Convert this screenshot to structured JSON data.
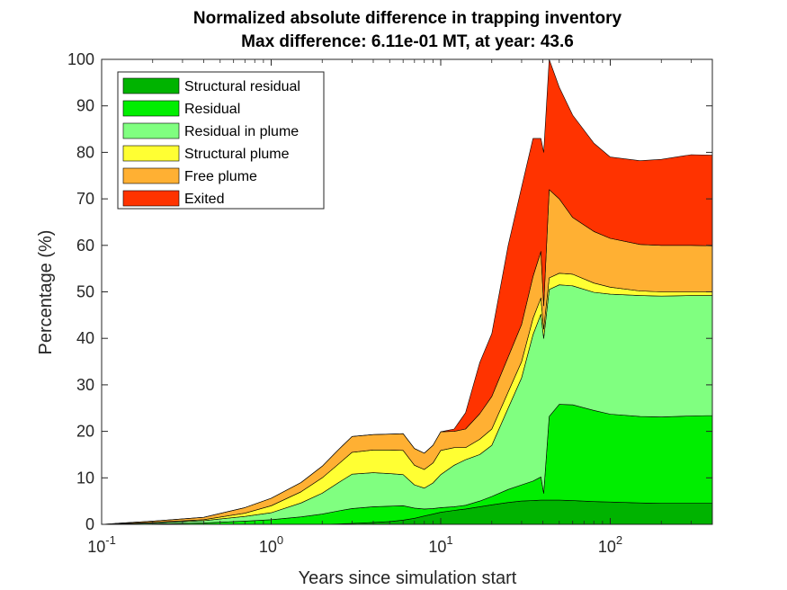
{
  "chart_data": {
    "type": "area",
    "stacked": true,
    "title": "Normalized absolute difference in trapping inventory",
    "subtitle": "Max difference: 6.11e-01 MT, at year: 43.6",
    "xlabel": "Years since simulation start",
    "ylabel": "Percentage (%)",
    "xscale": "log",
    "xlim": [
      0.1,
      400
    ],
    "ylim": [
      0,
      100
    ],
    "x_ticks": [
      {
        "value": 0.1,
        "base": "10",
        "exp": "-1"
      },
      {
        "value": 1,
        "base": "10",
        "exp": "0"
      },
      {
        "value": 10,
        "base": "10",
        "exp": "1"
      },
      {
        "value": 100,
        "base": "10",
        "exp": "2"
      }
    ],
    "y_ticks": [
      0,
      10,
      20,
      30,
      40,
      50,
      60,
      70,
      80,
      90,
      100
    ],
    "legend_position": "top-left",
    "grid": false,
    "x": [
      0.1,
      0.2,
      0.4,
      0.7,
      1.0,
      1.5,
      2.0,
      2.5,
      3.0,
      4.0,
      5.0,
      6.0,
      7.0,
      8.0,
      9.0,
      10.0,
      12.0,
      14.0,
      17.0,
      20.0,
      25.0,
      30.0,
      35.0,
      39.0,
      40.5,
      43.6,
      50.0,
      60.0,
      80.0,
      100.0,
      150.0,
      200.0,
      300.0,
      400.0
    ],
    "series": [
      {
        "name": "Structural residual",
        "color": "#00b300",
        "values": [
          0,
          0,
          0,
          0,
          0,
          0,
          0,
          0.1,
          0.2,
          0.4,
          0.6,
          0.9,
          1.3,
          1.8,
          2.2,
          2.6,
          3.0,
          3.3,
          3.8,
          4.2,
          4.7,
          5.0,
          5.1,
          5.2,
          5.2,
          5.2,
          5.2,
          5.1,
          4.9,
          4.8,
          4.6,
          4.5,
          4.5,
          4.5
        ]
      },
      {
        "name": "Residual",
        "color": "#00ee00",
        "values": [
          0,
          0.1,
          0.3,
          0.7,
          1.0,
          1.6,
          2.2,
          2.8,
          3.2,
          3.4,
          3.3,
          3.1,
          2.2,
          1.5,
          1.2,
          1.0,
          0.8,
          0.8,
          1.2,
          1.8,
          2.8,
          3.5,
          4.2,
          5.0,
          1.5,
          18.0,
          20.6,
          20.6,
          19.6,
          18.9,
          18.6,
          18.6,
          18.8,
          18.9
        ]
      },
      {
        "name": "Residual in plume",
        "color": "#80ff80",
        "values": [
          0,
          0.2,
          0.5,
          1.0,
          1.5,
          3.0,
          4.5,
          6.1,
          7.4,
          7.3,
          7.0,
          6.7,
          5.0,
          4.5,
          5.5,
          7.1,
          8.9,
          9.8,
          10.0,
          11.0,
          17.5,
          23.0,
          31.5,
          35.0,
          33.3,
          27.3,
          25.7,
          25.6,
          25.4,
          25.8,
          26.0,
          26.0,
          25.9,
          25.8
        ]
      },
      {
        "name": "Structural plume",
        "color": "#ffff33",
        "values": [
          0,
          0.1,
          0.2,
          0.7,
          1.5,
          2.4,
          3.3,
          4.0,
          4.7,
          4.9,
          5.1,
          5.2,
          4.2,
          4.0,
          4.3,
          5.2,
          3.8,
          2.6,
          3.3,
          3.5,
          3.5,
          3.5,
          3.5,
          3.5,
          2.0,
          2.5,
          2.5,
          2.5,
          2.0,
          1.5,
          1.0,
          0.9,
          0.8,
          0.8
        ]
      },
      {
        "name": "Free plume",
        "color": "#ffb033",
        "values": [
          0,
          0.3,
          0.5,
          1.2,
          1.6,
          2.0,
          2.5,
          3.1,
          3.4,
          3.3,
          3.4,
          3.6,
          3.6,
          3.5,
          3.8,
          4.0,
          3.5,
          4.0,
          5.5,
          7.0,
          7.5,
          8.0,
          9.0,
          10.0,
          5.0,
          19.0,
          16.0,
          12.2,
          11.1,
          10.5,
          10.0,
          10.0,
          10.0,
          9.9
        ]
      },
      {
        "name": "Exited",
        "color": "#ff3300",
        "values": [
          0,
          0,
          0,
          0,
          0,
          0,
          0,
          0,
          0,
          0,
          0,
          0,
          0,
          0,
          0,
          0,
          0.5,
          3.5,
          11.0,
          13.5,
          24.0,
          29.5,
          29.7,
          24.3,
          33.0,
          28.0,
          24.0,
          22.0,
          19.0,
          17.5,
          18.0,
          18.5,
          19.5,
          19.5
        ]
      }
    ]
  }
}
